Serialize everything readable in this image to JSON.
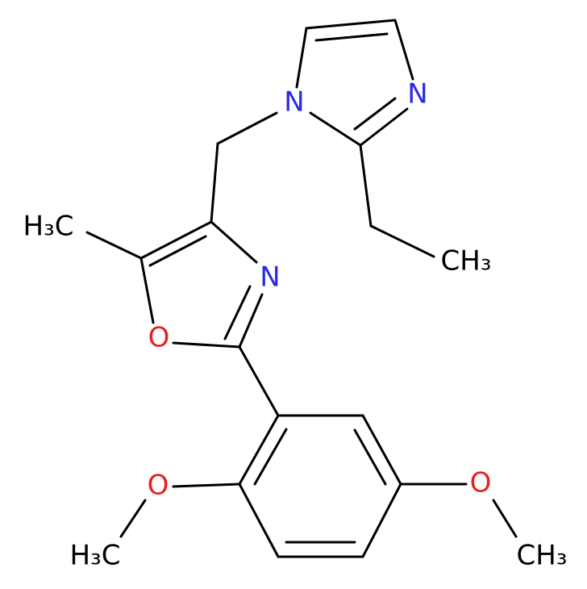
{
  "atoms": {
    "imidazole_n1": "N",
    "imidazole_n3": "N",
    "oxazole_methyl": "H₃C",
    "ethyl_methyl": "CH₃",
    "oxazole_n": "N",
    "oxazole_o": "O",
    "methoxy_left_o": "O",
    "methoxy_left_methyl": "H₃C",
    "methoxy_right_o": "O",
    "methoxy_right_methyl": "CH₃"
  }
}
